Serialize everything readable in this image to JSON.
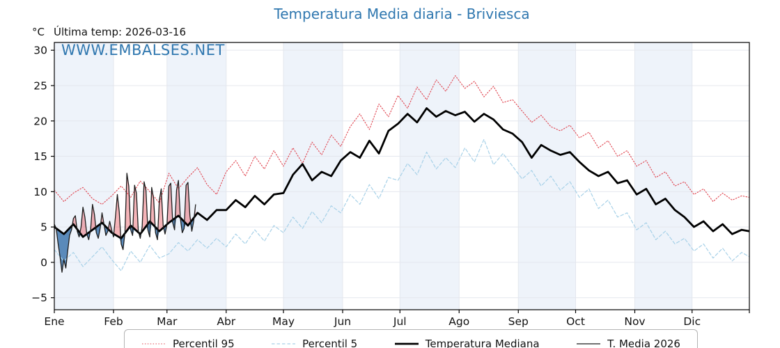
{
  "header": {
    "title": "Temperatura Media diaria - Briviesca",
    "y_unit": "°C",
    "subtitle": "Última temp: 2026-03-16",
    "watermark": "WWW.EMBALSES.NET"
  },
  "colors": {
    "title_blue": "#2f77af",
    "band": "#eef3fa",
    "grid": "#e4e7ee",
    "axis": "#000000",
    "p95_red": "#e0434e",
    "p5_lightblue": "#a7d1e8",
    "median_black": "#000000",
    "line_2026": "#1c1c1c",
    "fill_above": "rgba(231,76,85,0.42)",
    "fill_below": "rgba(52,111,170,0.80)",
    "legend_border": "#b3b3b3"
  },
  "legend": {
    "items": [
      {
        "label": "Percentil 95"
      },
      {
        "label": "Percentil 5"
      },
      {
        "label": "Temperatura Mediana"
      },
      {
        "label": "T. Media 2026"
      }
    ]
  },
  "chart_data": {
    "type": "line",
    "title": "Temperatura Media diaria - Briviesca",
    "xlabel": "",
    "ylabel": "°C",
    "x_tick_labels": [
      "Ene",
      "Feb",
      "Mar",
      "Abr",
      "May",
      "Jun",
      "Jul",
      "Ago",
      "Sep",
      "Oct",
      "Nov",
      "Dic"
    ],
    "month_start_days": [
      1,
      32,
      60,
      91,
      121,
      152,
      182,
      213,
      244,
      274,
      305,
      335
    ],
    "y_ticks": {
      "values": [
        30,
        25,
        20,
        15,
        10,
        5,
        0,
        -5
      ],
      "labels": [
        "30",
        "25",
        "20",
        "15",
        "10",
        "5",
        "0",
        "−5"
      ]
    },
    "ylim": [
      -6.7,
      31.1
    ],
    "xlim_days": [
      1,
      365
    ],
    "grid": true,
    "legend_position": "bottom",
    "sample_days": [
      1,
      6,
      11,
      16,
      21,
      26,
      31,
      36,
      41,
      46,
      51,
      56,
      61,
      66,
      71,
      76,
      81,
      86,
      91,
      96,
      101,
      106,
      111,
      116,
      121,
      126,
      131,
      136,
      141,
      146,
      151,
      156,
      161,
      166,
      171,
      176,
      181,
      186,
      191,
      196,
      201,
      206,
      211,
      216,
      221,
      226,
      231,
      236,
      241,
      246,
      251,
      256,
      261,
      266,
      271,
      276,
      281,
      286,
      291,
      296,
      301,
      306,
      311,
      316,
      321,
      326,
      331,
      336,
      341,
      346,
      351,
      356,
      361,
      365
    ],
    "series": [
      {
        "name": "Percentil 95",
        "style": "dotted",
        "color": "#e0434e",
        "width": 1.1,
        "values": [
          10.2,
          8.6,
          9.8,
          10.6,
          9.0,
          8.2,
          9.4,
          10.8,
          9.2,
          11.5,
          10.0,
          8.4,
          12.6,
          10.4,
          12.0,
          13.4,
          11.0,
          9.6,
          12.8,
          14.4,
          12.2,
          15.0,
          13.2,
          15.8,
          13.6,
          16.2,
          14.0,
          17.0,
          15.2,
          18.0,
          16.4,
          19.2,
          21.0,
          18.8,
          22.4,
          20.6,
          23.6,
          21.8,
          24.8,
          23.0,
          25.8,
          24.2,
          26.4,
          24.6,
          25.6,
          23.4,
          24.9,
          22.6,
          23.0,
          21.4,
          19.8,
          20.8,
          19.2,
          18.6,
          19.4,
          17.6,
          18.4,
          16.2,
          17.2,
          15.0,
          15.8,
          13.6,
          14.4,
          12.0,
          12.8,
          10.8,
          11.4,
          9.6,
          10.4,
          8.6,
          9.8,
          8.8,
          9.4,
          9.2
        ]
      },
      {
        "name": "Percentil 5",
        "style": "dashed",
        "color": "#a7d1e8",
        "width": 1.2,
        "values": [
          1.8,
          0.2,
          1.4,
          -0.6,
          0.8,
          2.2,
          0.4,
          -1.2,
          1.6,
          0.0,
          2.4,
          0.6,
          1.2,
          2.8,
          1.6,
          3.2,
          2.0,
          3.4,
          2.2,
          4.0,
          2.6,
          4.6,
          3.0,
          5.2,
          4.2,
          6.4,
          4.8,
          7.2,
          5.6,
          8.0,
          7.0,
          9.6,
          8.2,
          11.0,
          9.0,
          12.0,
          11.6,
          14.0,
          12.4,
          15.6,
          13.2,
          14.8,
          13.4,
          16.2,
          14.2,
          17.4,
          13.8,
          15.4,
          13.6,
          11.8,
          13.0,
          10.8,
          12.2,
          10.2,
          11.4,
          9.2,
          10.4,
          7.6,
          8.8,
          6.4,
          7.0,
          4.6,
          5.6,
          3.2,
          4.4,
          2.6,
          3.4,
          1.6,
          2.6,
          0.6,
          2.0,
          0.2,
          1.4,
          0.8
        ]
      },
      {
        "name": "Temperatura Mediana",
        "style": "solid",
        "color": "#000000",
        "width": 2.8,
        "values": [
          5.0,
          4.0,
          5.4,
          3.6,
          4.6,
          5.6,
          4.2,
          3.4,
          5.2,
          4.0,
          5.8,
          4.4,
          5.6,
          6.6,
          5.2,
          7.0,
          6.0,
          7.4,
          7.4,
          8.8,
          7.8,
          9.4,
          8.2,
          9.6,
          9.8,
          12.4,
          13.9,
          11.6,
          12.8,
          12.2,
          14.4,
          15.6,
          14.8,
          17.2,
          15.4,
          18.6,
          19.6,
          21.0,
          19.8,
          21.8,
          20.6,
          21.4,
          20.8,
          21.3,
          19.9,
          21.0,
          20.2,
          18.8,
          18.2,
          17.0,
          14.8,
          16.6,
          15.8,
          15.2,
          15.6,
          14.2,
          13.0,
          12.2,
          12.8,
          11.2,
          11.6,
          9.6,
          10.4,
          8.2,
          9.0,
          7.4,
          6.4,
          5.0,
          5.8,
          4.4,
          5.4,
          4.0,
          4.6,
          4.4
        ]
      }
    ],
    "series_2026": {
      "name": "T. Media 2026",
      "style": "solid",
      "color": "#1c1c1c",
      "width": 1.3,
      "fill_above_color": "rgba(231,76,85,0.42)",
      "fill_below_color": "rgba(52,111,170,0.80)",
      "days": [
        1,
        2,
        3,
        4,
        5,
        6,
        7,
        8,
        9,
        10,
        11,
        12,
        13,
        14,
        15,
        16,
        17,
        18,
        19,
        20,
        21,
        22,
        23,
        24,
        25,
        26,
        27,
        28,
        29,
        30,
        31,
        32,
        33,
        34,
        35,
        36,
        37,
        38,
        39,
        40,
        41,
        42,
        43,
        44,
        45,
        46,
        47,
        48,
        49,
        50,
        51,
        52,
        53,
        54,
        55,
        56,
        57,
        58,
        59,
        60,
        61,
        62,
        63,
        64,
        65,
        66,
        67,
        68,
        69,
        70,
        71,
        72,
        73,
        74,
        75
      ],
      "values": [
        5.4,
        4.8,
        2.6,
        0.8,
        -1.4,
        0.4,
        -0.8,
        1.6,
        3.8,
        4.6,
        6.2,
        6.6,
        4.4,
        3.6,
        5.0,
        7.8,
        6.4,
        4.0,
        3.2,
        4.6,
        8.2,
        6.8,
        4.2,
        3.4,
        4.8,
        7.0,
        5.4,
        3.8,
        4.4,
        5.8,
        4.6,
        3.6,
        6.4,
        9.6,
        7.2,
        2.6,
        1.8,
        4.2,
        12.6,
        10.8,
        4.6,
        3.8,
        10.9,
        9.8,
        4.4,
        3.4,
        5.0,
        11.4,
        10.2,
        4.6,
        3.6,
        10.6,
        9.0,
        4.2,
        3.2,
        8.8,
        10.4,
        5.2,
        4.0,
        5.4,
        10.8,
        11.2,
        5.6,
        4.6,
        10.2,
        11.6,
        6.2,
        4.2,
        4.8,
        10.9,
        11.3,
        6.6,
        4.4,
        5.8,
        8.2
      ]
    }
  }
}
